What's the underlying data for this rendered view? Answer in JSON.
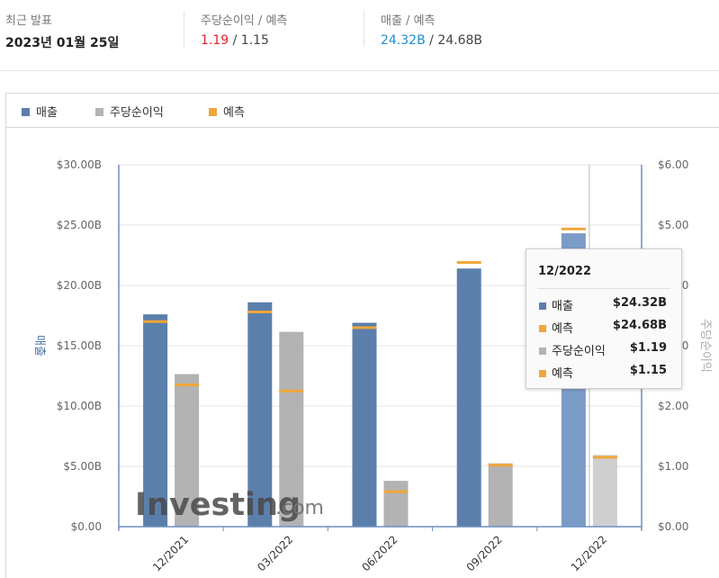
{
  "summary": {
    "latest_label": "최근 발표",
    "latest_date": "2023년 01월 25일",
    "eps_label": "주당순이익 / 예측",
    "eps_actual": "1.19",
    "eps_forecast": "1.15",
    "rev_label": "매출 / 예측",
    "rev_actual": "24.32B",
    "rev_forecast": "24.68B",
    "slash": "/"
  },
  "legend": {
    "revenue": "매출",
    "eps": "주당순이익",
    "forecast": "예측"
  },
  "colors": {
    "revenue": "#5b7fab",
    "revenue_highlight": "#7b9cc7",
    "eps": "#b3b3b3",
    "eps_highlight": "#cfcfcf",
    "forecast": "#f0a63a",
    "positive": "#e4212f",
    "accent_blue": "#1f8fd1"
  },
  "chart_data": {
    "type": "bar",
    "categories": [
      "12/2021",
      "03/2022",
      "06/2022",
      "09/2022",
      "12/2022"
    ],
    "y_left": {
      "label": "매출",
      "ylim": [
        0,
        30
      ],
      "ticks": [
        "$0.00",
        "$5.00B",
        "$10.00B",
        "$15.00B",
        "$20.00B",
        "$25.00B",
        "$30.00B"
      ]
    },
    "y_right": {
      "label": "주당순이익",
      "ylim": [
        0,
        6
      ],
      "ticks": [
        "$0.00",
        "$1.00",
        "$2.00",
        "$3.00",
        "$4.00",
        "$5.00",
        "$6.00"
      ]
    },
    "series": [
      {
        "name": "매출",
        "axis": "left",
        "values": [
          17.6,
          18.6,
          16.9,
          21.4,
          24.32
        ]
      },
      {
        "name": "예측",
        "axis": "left",
        "values": [
          17.0,
          17.8,
          16.5,
          21.9,
          24.68
        ]
      },
      {
        "name": "주당순이익",
        "axis": "right",
        "values": [
          2.53,
          3.23,
          0.76,
          1.05,
          1.19
        ]
      },
      {
        "name": "예측",
        "axis": "right",
        "values": [
          2.35,
          2.25,
          0.58,
          1.02,
          1.15
        ]
      }
    ],
    "highlight_index": 4,
    "grid": true,
    "legend_position": "top-left"
  },
  "tooltip": {
    "title": "12/2022",
    "rows": [
      {
        "label": "매출",
        "value": "$24.32B",
        "color": "#5b7fab"
      },
      {
        "label": "예측",
        "value": "$24.68B",
        "color": "#f0a63a"
      },
      {
        "label": "주당순이익",
        "value": "$1.19",
        "color": "#b3b3b3"
      },
      {
        "label": "예측",
        "value": "$1.15",
        "color": "#f0a63a"
      }
    ]
  },
  "watermark": {
    "brand": "Investing",
    "suffix": ".com"
  }
}
